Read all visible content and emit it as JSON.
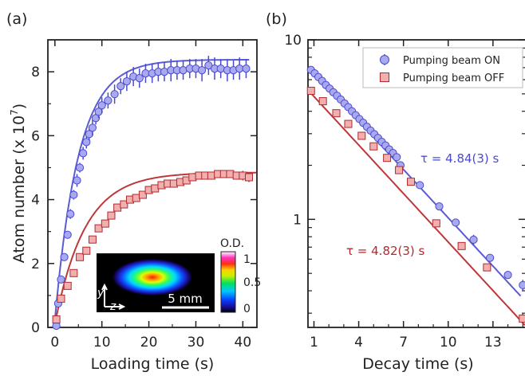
{
  "chart_data": [
    {
      "panel_label": "(a)",
      "type": "scatter",
      "xlabel": "Loading time (s)",
      "ylabel": "Atom number (x 10^7)",
      "ylabel_parts": {
        "text": "Atom number (x 10",
        "exp": "7",
        "close": ")"
      },
      "xlim": [
        -1.5,
        43
      ],
      "ylim": [
        0,
        9
      ],
      "xticks": [
        0,
        10,
        20,
        30,
        40
      ],
      "yticks": [
        0,
        2,
        4,
        6,
        8
      ],
      "grid": false,
      "series": [
        {
          "color": "#5b5bd6",
          "marker": "circle",
          "x": [
            0.3,
            0.7,
            1.3,
            2,
            2.7,
            3.3,
            4,
            4.7,
            5.3,
            6,
            6.7,
            7.3,
            8,
            8.7,
            9.3,
            10,
            11.3,
            12.7,
            14,
            15.3,
            16.7,
            18,
            19.3,
            20.7,
            22,
            23.3,
            24.7,
            26,
            27.3,
            28.7,
            30,
            31.3,
            32.7,
            34,
            35.3,
            36.7,
            38,
            39.3,
            40.7
          ],
          "y": [
            0.05,
            0.75,
            1.5,
            2.2,
            2.9,
            3.55,
            4.15,
            4.6,
            5.0,
            5.45,
            5.8,
            6.05,
            6.25,
            6.55,
            6.75,
            6.95,
            7.1,
            7.3,
            7.55,
            7.7,
            7.85,
            7.8,
            7.95,
            7.95,
            8.0,
            8.0,
            8.05,
            8.05,
            8.05,
            8.1,
            8.1,
            8.05,
            8.2,
            8.1,
            8.1,
            8.05,
            8.05,
            8.1,
            8.1
          ],
          "err": [
            0.05,
            0.05,
            0.1,
            0.1,
            0.1,
            0.15,
            0.15,
            0.2,
            0.15,
            0.2,
            0.2,
            0.2,
            0.25,
            0.2,
            0.2,
            0.25,
            0.25,
            0.3,
            0.25,
            0.3,
            0.3,
            0.3,
            0.3,
            0.3,
            0.3,
            0.3,
            0.35,
            0.3,
            0.3,
            0.3,
            0.3,
            0.35,
            0.3,
            0.35,
            0.3,
            0.35,
            0.3,
            0.35,
            0.3
          ],
          "fit": {
            "a": 8.38,
            "tau": 5.05,
            "x0": -0.15,
            "xmax": 41.5
          }
        },
        {
          "color": "#c0373b",
          "marker": "square",
          "x": [
            0.3,
            1.3,
            2.7,
            4,
            5.3,
            6.7,
            8,
            9.3,
            10.7,
            12,
            13.3,
            14.7,
            16,
            17.3,
            18.7,
            20,
            21.3,
            22.7,
            24,
            25.3,
            26.7,
            28,
            29.3,
            30.7,
            32,
            33.3,
            34.7,
            36,
            37.3,
            38.7,
            40,
            41.3
          ],
          "y": [
            0.25,
            0.9,
            1.3,
            1.7,
            2.2,
            2.4,
            2.75,
            3.1,
            3.25,
            3.5,
            3.75,
            3.85,
            4.0,
            4.05,
            4.15,
            4.3,
            4.35,
            4.45,
            4.5,
            4.5,
            4.55,
            4.6,
            4.7,
            4.75,
            4.75,
            4.75,
            4.8,
            4.8,
            4.8,
            4.75,
            4.75,
            4.7
          ],
          "err": [
            0.05,
            0.1,
            0.1,
            0.1,
            0.1,
            0.1,
            0.1,
            0.1,
            0.1,
            0.1,
            0.1,
            0.1,
            0.1,
            0.1,
            0.1,
            0.1,
            0.1,
            0.1,
            0.1,
            0.1,
            0.1,
            0.1,
            0.1,
            0.1,
            0.1,
            0.1,
            0.1,
            0.1,
            0.1,
            0.1,
            0.15,
            0.15
          ],
          "fit": {
            "a": 4.85,
            "tau": 6.4,
            "x0": -0.15,
            "xmax": 43
          }
        }
      ],
      "inset": {
        "scale_bar": "5 mm",
        "axes": [
          "y",
          "z"
        ],
        "colorbar_label": "O.D.",
        "colorbar_ticks": [
          "1",
          "0.5",
          "0"
        ]
      }
    },
    {
      "panel_label": "(b)",
      "type": "scatter",
      "xlabel": "Decay time (s)",
      "ylabel": "",
      "yscale": "log",
      "xlim": [
        0.6,
        15.2
      ],
      "ylim": [
        0.25,
        10
      ],
      "xticks": [
        1,
        4,
        7,
        10,
        13
      ],
      "yticks": [
        1,
        10
      ],
      "grid": false,
      "legend": {
        "position": "top-right"
      },
      "series": [
        {
          "name": "Pumping beam ON",
          "color": "#5b5bd6",
          "marker": "circle",
          "x": [
            0.8,
            1.05,
            1.3,
            1.55,
            1.8,
            2.05,
            2.3,
            2.55,
            2.8,
            3.05,
            3.3,
            3.55,
            3.8,
            4.05,
            4.3,
            4.55,
            4.8,
            5.05,
            5.3,
            5.55,
            5.8,
            6.05,
            6.3,
            6.55,
            6.8,
            8.1,
            9.4,
            10.5,
            11.7,
            12.8,
            14,
            15
          ],
          "y": [
            6.8,
            6.5,
            6.2,
            5.9,
            5.6,
            5.35,
            5.1,
            4.88,
            4.65,
            4.42,
            4.22,
            4.0,
            3.8,
            3.62,
            3.45,
            3.28,
            3.12,
            2.98,
            2.84,
            2.7,
            2.58,
            2.45,
            2.34,
            2.22,
            2.0,
            1.55,
            1.18,
            0.96,
            0.77,
            0.61,
            0.49,
            0.43
          ],
          "err": [
            0.15,
            0.1,
            0.1,
            0.1,
            0.1,
            0.1,
            0.1,
            0.1,
            0.1,
            0.08,
            0.08,
            0.08,
            0.08,
            0.08,
            0.07,
            0.07,
            0.07,
            0.06,
            0.06,
            0.06,
            0.05,
            0.05,
            0.05,
            0.05,
            0.05,
            0.04,
            0.03,
            0.03,
            0.05,
            0.02,
            0.02,
            0.03
          ],
          "fit": {
            "a": 8.05,
            "tau": 4.84,
            "x0": 0.0,
            "xstart": 0.75,
            "xmax": 14.9
          },
          "annotation": "τ = 4.84(3) s"
        },
        {
          "name": "Pumping beam OFF",
          "color": "#c0373b",
          "marker": "square",
          "x": [
            0.8,
            1.6,
            2.5,
            3.3,
            4.2,
            5.0,
            5.9,
            6.7,
            7.5,
            9.2,
            10.9,
            12.6,
            15
          ],
          "y": [
            5.2,
            4.55,
            3.9,
            3.4,
            2.92,
            2.55,
            2.2,
            1.88,
            1.62,
            0.95,
            0.71,
            0.54,
            0.28
          ],
          "err": [
            0.05,
            0.05,
            0.05,
            0.05,
            0.04,
            0.04,
            0.04,
            0.03,
            0.03,
            0.02,
            0.02,
            0.02,
            0.02
          ],
          "fit": {
            "a": 5.95,
            "tau": 4.82,
            "x0": 0.0,
            "xstart": 0.75,
            "xmax": 15.2
          },
          "annotation": "τ = 4.82(3) s"
        }
      ]
    }
  ]
}
